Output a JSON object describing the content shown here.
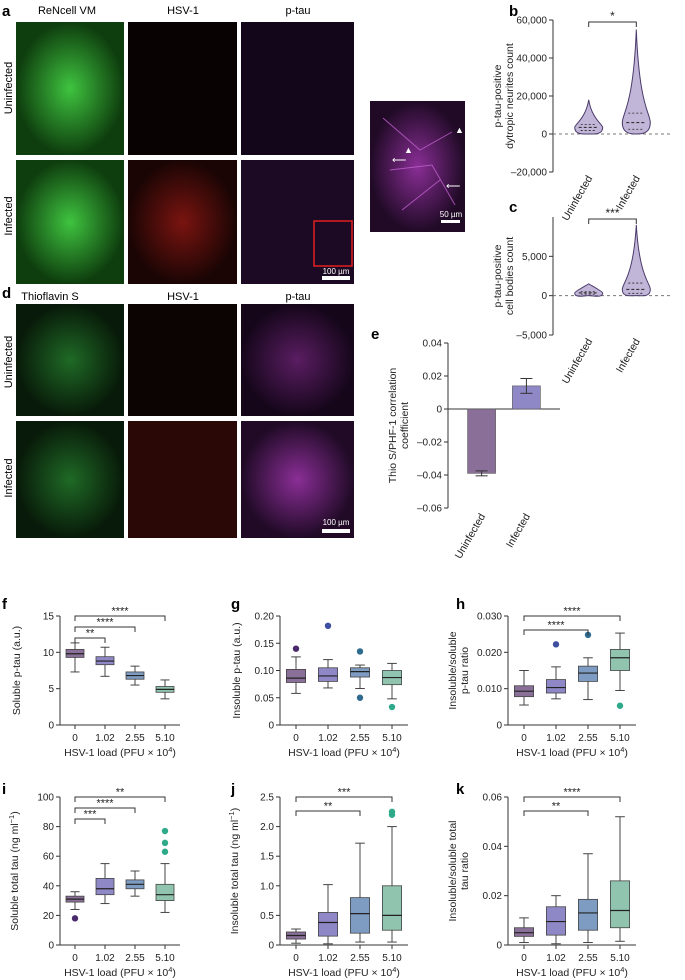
{
  "panels": {
    "a": "a",
    "b": "b",
    "c": "c",
    "d": "d",
    "e": "e",
    "f": "f",
    "g": "g",
    "h": "h",
    "i": "i",
    "j": "j",
    "k": "k"
  },
  "micrographs": {
    "a": {
      "columns": [
        "ReNcell VM",
        "HSV-1",
        "p-tau"
      ],
      "rows": [
        "Uninfected",
        "Infected"
      ],
      "scale_bar": "100 µm",
      "inset_scale_bar": "50 µm",
      "colors": {
        "green": "#2fae2f",
        "red": "#c8221c",
        "magenta": "#b03ac0"
      }
    },
    "d": {
      "columns": [
        "Thioflavin S",
        "HSV-1",
        "p-tau"
      ],
      "rows": [
        "Uninfected",
        "Infected"
      ],
      "scale_bar": "100 µm"
    }
  },
  "chart_data": [
    {
      "id": "b",
      "type": "violin",
      "ylabel_lines": [
        "p-tau-positive",
        "dytropic neurites count"
      ],
      "ylim": [
        -20000,
        60000
      ],
      "yticks": [
        -20000,
        0,
        20000,
        40000,
        60000
      ],
      "ytick_labels": [
        "–20,000",
        "0",
        "20,000",
        "40,000",
        "60,000"
      ],
      "categories": [
        "Uninfected",
        "Infected"
      ],
      "median": [
        3500,
        6000
      ],
      "q1": [
        1800,
        2500
      ],
      "q3": [
        5000,
        11000
      ],
      "min": [
        0,
        0
      ],
      "max": [
        18000,
        55000
      ],
      "significance": "*",
      "color": "#8f7ab8"
    },
    {
      "id": "c",
      "type": "violin",
      "ylabel_lines": [
        "p-tau-positive",
        "cell bodies count"
      ],
      "ylim": [
        -5000,
        10000
      ],
      "yticks": [
        -5000,
        0,
        5000
      ],
      "ytick_labels": [
        "–5,000",
        "0",
        "5,000"
      ],
      "categories": [
        "Uninfected",
        "Infected"
      ],
      "median": [
        350,
        800
      ],
      "q1": [
        200,
        300
      ],
      "q3": [
        500,
        1600
      ],
      "min": [
        0,
        0
      ],
      "max": [
        1500,
        9000
      ],
      "significance": "***",
      "color": "#8f7ab8"
    },
    {
      "id": "e",
      "type": "bar",
      "ylabel_lines": [
        "Thio S/PHF-1 correlation",
        "coefficient"
      ],
      "ylim": [
        -0.06,
        0.04
      ],
      "yticks": [
        -0.06,
        -0.04,
        -0.02,
        0,
        0.02,
        0.04
      ],
      "ytick_labels": [
        "–0.06",
        "–0.04",
        "–0.02",
        "0",
        "0.02",
        "0.04"
      ],
      "categories": [
        "Uninfected",
        "Infected"
      ],
      "values": [
        -0.039,
        0.014
      ],
      "errors": [
        0.0015,
        0.0045
      ],
      "colors": [
        "#8a6f98",
        "#8f88c7"
      ]
    },
    {
      "id": "f",
      "type": "box",
      "ylabel_lines": [
        "Soluble p-tau (a.u.)"
      ],
      "xlabel": "HSV-1 load (PFU × 10",
      "xlabel_sup": "4",
      "xlabel_end": ")",
      "ylim": [
        0,
        15
      ],
      "yticks": [
        0,
        5,
        10,
        15
      ],
      "ytick_labels": [
        "0",
        "5",
        "10",
        "15"
      ],
      "categories": [
        "0",
        "1.02",
        "2.55",
        "5.10"
      ],
      "boxes": [
        {
          "min": 7.3,
          "q1": 9.3,
          "median": 9.8,
          "q3": 10.4,
          "max": 11.3,
          "outliers": []
        },
        {
          "min": 6.7,
          "q1": 8.3,
          "median": 8.8,
          "q3": 9.4,
          "max": 10.7,
          "outliers": []
        },
        {
          "min": 5.5,
          "q1": 6.3,
          "median": 6.8,
          "q3": 7.3,
          "max": 8.1,
          "outliers": []
        },
        {
          "min": 3.6,
          "q1": 4.5,
          "median": 4.9,
          "q3": 5.3,
          "max": 6.2,
          "outliers": []
        }
      ],
      "brackets": [
        {
          "from": 0,
          "to": 1,
          "label": "**"
        },
        {
          "from": 0,
          "to": 2,
          "label": "****"
        },
        {
          "from": 0,
          "to": 3,
          "label": "****"
        }
      ]
    },
    {
      "id": "g",
      "type": "box",
      "ylabel_lines": [
        "Insoluble p-tau (a.u.)"
      ],
      "xlabel": "HSV-1 load (PFU × 10",
      "xlabel_sup": "4",
      "xlabel_end": ")",
      "ylim": [
        0,
        0.2
      ],
      "yticks": [
        0,
        0.05,
        0.1,
        0.15,
        0.2
      ],
      "ytick_labels": [
        "0",
        "0.05",
        "0.10",
        "0.15",
        "0.20"
      ],
      "categories": [
        "0",
        "1.02",
        "2.55",
        "5.10"
      ],
      "boxes": [
        {
          "min": 0.058,
          "q1": 0.078,
          "median": 0.086,
          "q3": 0.102,
          "max": 0.125,
          "outliers": [
            0.14
          ]
        },
        {
          "min": 0.068,
          "q1": 0.08,
          "median": 0.09,
          "q3": 0.105,
          "max": 0.12,
          "outliers": [
            0.182
          ]
        },
        {
          "min": 0.067,
          "q1": 0.088,
          "median": 0.098,
          "q3": 0.105,
          "max": 0.11,
          "outliers": [
            0.135,
            0.05
          ]
        },
        {
          "min": 0.048,
          "q1": 0.074,
          "median": 0.087,
          "q3": 0.1,
          "max": 0.113,
          "outliers": [
            0.033
          ]
        }
      ],
      "brackets": []
    },
    {
      "id": "h",
      "type": "box",
      "ylabel_lines": [
        "Insoluble/soluble",
        "p-tau ratio"
      ],
      "xlabel": "HSV-1 load (PFU × 10",
      "xlabel_sup": "4",
      "xlabel_end": ")",
      "ylim": [
        0,
        0.03
      ],
      "yticks": [
        0,
        0.01,
        0.02,
        0.03
      ],
      "ytick_labels": [
        "0",
        "0.010",
        "0.020",
        "0.030"
      ],
      "categories": [
        "0",
        "1.02",
        "2.55",
        "5.10"
      ],
      "boxes": [
        {
          "min": 0.0055,
          "q1": 0.0078,
          "median": 0.0093,
          "q3": 0.0108,
          "max": 0.015,
          "outliers": []
        },
        {
          "min": 0.0072,
          "q1": 0.0088,
          "median": 0.0103,
          "q3": 0.0125,
          "max": 0.016,
          "outliers": [
            0.0222
          ]
        },
        {
          "min": 0.007,
          "q1": 0.012,
          "median": 0.0143,
          "q3": 0.0162,
          "max": 0.0185,
          "outliers": [
            0.0248
          ]
        },
        {
          "min": 0.0095,
          "q1": 0.015,
          "median": 0.0185,
          "q3": 0.0208,
          "max": 0.0253,
          "outliers": [
            0.0053
          ]
        }
      ],
      "brackets": [
        {
          "from": 0,
          "to": 2,
          "label": "****"
        },
        {
          "from": 0,
          "to": 3,
          "label": "****"
        }
      ]
    },
    {
      "id": "i",
      "type": "box",
      "ylabel_lines": [
        "Soluble total tau (ng ml",
        "−1",
        ")"
      ],
      "xlabel": "HSV-1 load (PFU × 10",
      "xlabel_sup": "4",
      "xlabel_end": ")",
      "ylim": [
        0,
        100
      ],
      "yticks": [
        0,
        20,
        40,
        60,
        80,
        100
      ],
      "ytick_labels": [
        "0",
        "20",
        "40",
        "60",
        "80",
        "100"
      ],
      "categories": [
        "0",
        "1.02",
        "2.55",
        "5.10"
      ],
      "boxes": [
        {
          "min": 24,
          "q1": 29,
          "median": 31,
          "q3": 33,
          "max": 36,
          "outliers": [
            18
          ]
        },
        {
          "min": 28,
          "q1": 34,
          "median": 38,
          "q3": 45,
          "max": 55,
          "outliers": []
        },
        {
          "min": 33,
          "q1": 38,
          "median": 41,
          "q3": 44,
          "max": 50,
          "outliers": []
        },
        {
          "min": 22,
          "q1": 30,
          "median": 34,
          "q3": 41,
          "max": 55,
          "outliers": [
            63,
            69,
            77
          ]
        }
      ],
      "brackets": [
        {
          "from": 0,
          "to": 1,
          "label": "***"
        },
        {
          "from": 0,
          "to": 2,
          "label": "****"
        },
        {
          "from": 0,
          "to": 3,
          "label": "**"
        }
      ]
    },
    {
      "id": "j",
      "type": "box",
      "ylabel_lines": [
        "Insoluble total tau (ng ml",
        "−1",
        ")"
      ],
      "xlabel": "HSV-1 load (PFU × 10",
      "xlabel_sup": "4",
      "xlabel_end": ")",
      "ylim": [
        0,
        2.5
      ],
      "yticks": [
        0,
        0.5,
        1,
        1.5,
        2,
        2.5
      ],
      "ytick_labels": [
        "0",
        "0.5",
        "1.0",
        "1.5",
        "2.0",
        "2.5"
      ],
      "categories": [
        "0",
        "1.02",
        "2.55",
        "5.10"
      ],
      "boxes": [
        {
          "min": 0.03,
          "q1": 0.1,
          "median": 0.16,
          "q3": 0.22,
          "max": 0.27,
          "outliers": []
        },
        {
          "min": 0.02,
          "q1": 0.15,
          "median": 0.38,
          "q3": 0.55,
          "max": 1.02,
          "outliers": []
        },
        {
          "min": 0.05,
          "q1": 0.2,
          "median": 0.53,
          "q3": 0.8,
          "max": 1.72,
          "outliers": []
        },
        {
          "min": 0.05,
          "q1": 0.25,
          "median": 0.5,
          "q3": 1.0,
          "max": 2.0,
          "outliers": [
            2.2,
            2.25
          ]
        }
      ],
      "brackets": [
        {
          "from": 0,
          "to": 2,
          "label": "**"
        },
        {
          "from": 0,
          "to": 3,
          "label": "***"
        }
      ]
    },
    {
      "id": "k",
      "type": "box",
      "ylabel_lines": [
        "Insoluble/soluble total",
        "tau ratio"
      ],
      "xlabel": "HSV-1 load (PFU × 10",
      "xlabel_sup": "4",
      "xlabel_end": ")",
      "ylim": [
        0,
        0.06
      ],
      "yticks": [
        0,
        0.02,
        0.04,
        0.06
      ],
      "ytick_labels": [
        "0",
        "0.02",
        "0.04",
        "0.06"
      ],
      "categories": [
        "0",
        "1.02",
        "2.55",
        "5.10"
      ],
      "boxes": [
        {
          "min": 0.001,
          "q1": 0.0035,
          "median": 0.005,
          "q3": 0.007,
          "max": 0.011,
          "outliers": []
        },
        {
          "min": 0.0005,
          "q1": 0.004,
          "median": 0.0095,
          "q3": 0.0155,
          "max": 0.02,
          "outliers": []
        },
        {
          "min": 0.001,
          "q1": 0.006,
          "median": 0.013,
          "q3": 0.0185,
          "max": 0.037,
          "outliers": []
        },
        {
          "min": 0.0015,
          "q1": 0.007,
          "median": 0.014,
          "q3": 0.026,
          "max": 0.052,
          "outliers": []
        }
      ],
      "brackets": [
        {
          "from": 0,
          "to": 2,
          "label": "**"
        },
        {
          "from": 0,
          "to": 3,
          "label": "****"
        }
      ]
    }
  ],
  "colors": {
    "box": [
      "#8a6f98",
      "#8f88c7",
      "#7e9cc2",
      "#90c4ae"
    ],
    "outlier": [
      "#4a2a6a",
      "#3f4fa0",
      "#2e6b8e",
      "#2eaa8a"
    ],
    "axis": "#333333",
    "violin": "#8f7ab8"
  }
}
